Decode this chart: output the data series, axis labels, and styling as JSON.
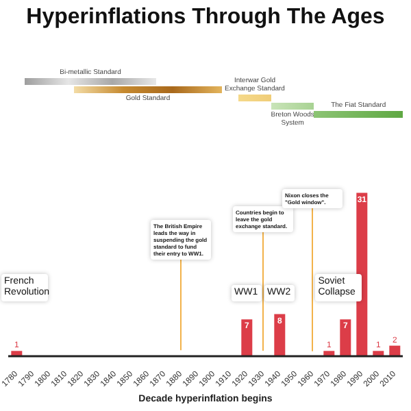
{
  "chart_data": {
    "type": "bar",
    "title": "Hyperinflations Through The Ages",
    "xlabel": "Decade hyperinflation begins",
    "categories": [
      "1780",
      "1790",
      "1800",
      "1810",
      "1820",
      "1830",
      "1840",
      "1850",
      "1860",
      "1870",
      "1880",
      "1890",
      "1900",
      "1910",
      "1920",
      "1930",
      "1940",
      "1950",
      "1960",
      "1970",
      "1980",
      "1990",
      "2000",
      "2010"
    ],
    "values": [
      1,
      0,
      0,
      0,
      0,
      0,
      0,
      0,
      0,
      0,
      0,
      0,
      0,
      0,
      7,
      0,
      8,
      0,
      0,
      1,
      7,
      31,
      1,
      2
    ],
    "value_labels": [
      "1",
      null,
      null,
      null,
      null,
      null,
      null,
      null,
      null,
      null,
      null,
      null,
      null,
      null,
      "7",
      null,
      "8",
      null,
      null,
      "1",
      "7",
      "31",
      "1",
      "2"
    ],
    "color": "#dc3d48",
    "annotations": [
      "Bi-metallic Standard",
      "Gold Standard",
      "Interwar Gold Exchange Standard",
      "Breton Woods System",
      "The Fiat Standard",
      "French Revolution",
      "The British Empire leads the way in suspending the gold standard to fund their entry to WW1.",
      "Countries begin to leave the gold exchange standard.",
      "Nixon closes the \"Gold window\".",
      "WW1",
      "WW2",
      "Soviet Collapse"
    ]
  }
}
